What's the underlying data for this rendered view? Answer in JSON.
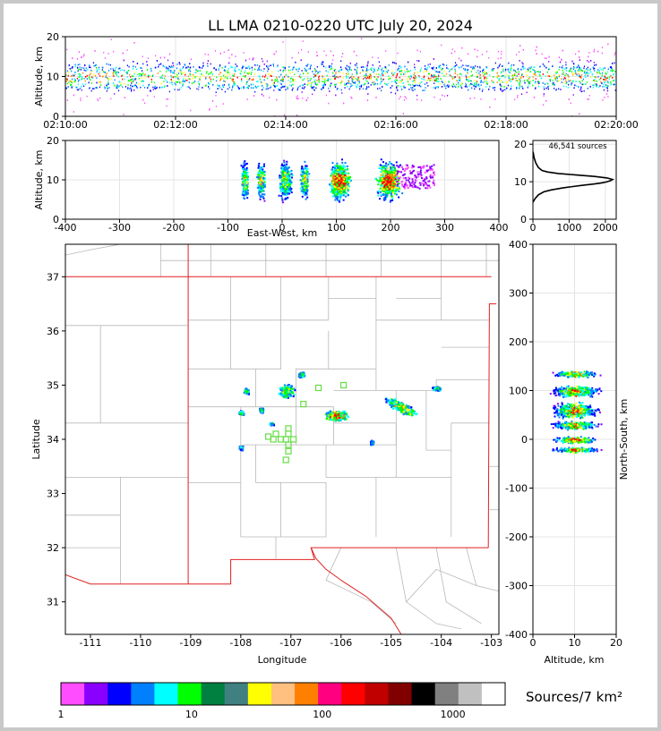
{
  "title": "LL LMA 0210-0220 UTC July 20, 2024",
  "colors": [
    "#ff4dff",
    "#8a00ff",
    "#0000ff",
    "#0080ff",
    "#00ffff",
    "#00ff00",
    "#008040",
    "#408080",
    "#ffff00",
    "#ffc080",
    "#ff8000",
    "#ff0080",
    "#ff0000",
    "#c00000",
    "#800000",
    "#000000",
    "#808080",
    "#c0c0c0",
    "#ffffff"
  ],
  "chart_data": [
    {
      "id": "time_height",
      "type": "scatter",
      "description_axis": "time vs altitude",
      "ylabel": "Altitude, km",
      "xlabel": "",
      "xlim": [
        "02:10:00",
        "02:20:00"
      ],
      "ylim": [
        0,
        20
      ],
      "xticks": [
        "02:10:00",
        "02:12:00",
        "02:14:00",
        "02:16:00",
        "02:18:00",
        "02:20:00"
      ],
      "yticks": [
        0,
        10,
        20
      ],
      "altitude_band_km": [
        4,
        17
      ],
      "altitude_core_km": [
        7,
        13
      ]
    },
    {
      "id": "ew_height",
      "type": "scatter",
      "xlabel": "East-West, km",
      "ylabel": "Altitude, km",
      "xlim": [
        -400,
        400
      ],
      "ylim": [
        0,
        20
      ],
      "xticks": [
        -400,
        -300,
        -200,
        -100,
        0,
        100,
        200,
        300,
        400
      ],
      "yticks": [
        0,
        10,
        20
      ],
      "clusters_ew_km": [
        -70,
        -40,
        5,
        40,
        105,
        195
      ]
    },
    {
      "id": "altitude_histogram",
      "type": "line",
      "annotation": "46,541 sources",
      "xlim": [
        0,
        2300
      ],
      "ylim": [
        0,
        21
      ],
      "xticks": [
        0,
        1000,
        2000
      ],
      "yticks": [
        0,
        10,
        20
      ],
      "x": [
        0,
        60,
        150,
        300,
        500,
        800,
        1100,
        1400,
        1700,
        1900,
        2050,
        2150,
        2200,
        2050,
        1700,
        1200,
        700,
        400,
        250,
        150,
        80,
        30,
        5
      ],
      "y": [
        4.5,
        5.5,
        6.5,
        7.3,
        7.8,
        8.3,
        8.7,
        9.1,
        9.4,
        9.7,
        10.0,
        10.3,
        10.6,
        11.0,
        11.4,
        11.8,
        12.2,
        12.6,
        13.0,
        13.8,
        15.0,
        16.5,
        18.0
      ]
    },
    {
      "id": "plan_view",
      "type": "scatter",
      "xlabel": "Longitude",
      "ylabel": "Latitude",
      "xlim": [
        -111.5,
        -102.85
      ],
      "ylim": [
        30.4,
        37.6
      ],
      "xticks": [
        -111,
        -110,
        -109,
        -108,
        -107,
        -106,
        -105,
        -104,
        -103
      ],
      "yticks": [
        31,
        32,
        33,
        34,
        35,
        36,
        37
      ],
      "clusters": [
        {
          "lon": -106.1,
          "lat": 34.45
        },
        {
          "lon": -104.8,
          "lat": 34.6
        },
        {
          "lon": -107.1,
          "lat": 34.9
        },
        {
          "lon": -107.9,
          "lat": 34.9
        },
        {
          "lon": -108.0,
          "lat": 34.5
        },
        {
          "lon": -107.6,
          "lat": 34.55
        },
        {
          "lon": -108.0,
          "lat": 33.85
        },
        {
          "lon": -106.8,
          "lat": 35.2
        },
        {
          "lon": -104.1,
          "lat": 34.95
        },
        {
          "lon": -105.4,
          "lat": 33.95
        },
        {
          "lon": -107.4,
          "lat": 34.3
        }
      ],
      "stations": [
        [
          -107.3,
          34.1
        ],
        [
          -107.35,
          34.0
        ],
        [
          -107.2,
          34.0
        ],
        [
          -107.1,
          34.0
        ],
        [
          -106.95,
          34.0
        ],
        [
          -107.05,
          34.1
        ],
        [
          -107.05,
          34.2
        ],
        [
          -107.05,
          33.9
        ],
        [
          -107.05,
          33.78
        ],
        [
          -107.1,
          33.62
        ],
        [
          -107.45,
          34.05
        ],
        [
          -106.75,
          34.65
        ],
        [
          -106.45,
          34.95
        ],
        [
          -105.95,
          35.0
        ]
      ]
    },
    {
      "id": "ns_height",
      "type": "scatter",
      "xlabel": "Altitude, km",
      "ylabel": "North-South, km",
      "xlim": [
        0,
        20
      ],
      "ylim": [
        -400,
        400
      ],
      "xticks": [
        0,
        10,
        20
      ],
      "yticks": [
        -400,
        -300,
        -200,
        -100,
        0,
        100,
        200,
        300,
        400
      ],
      "clusters_ns_km": [
        135,
        100,
        60,
        30,
        0,
        -20
      ]
    },
    {
      "id": "colorbar",
      "type": "heatmap",
      "label": "Sources/7 km²",
      "tick_labels": [
        "1",
        "10",
        "100",
        "1000"
      ]
    }
  ]
}
